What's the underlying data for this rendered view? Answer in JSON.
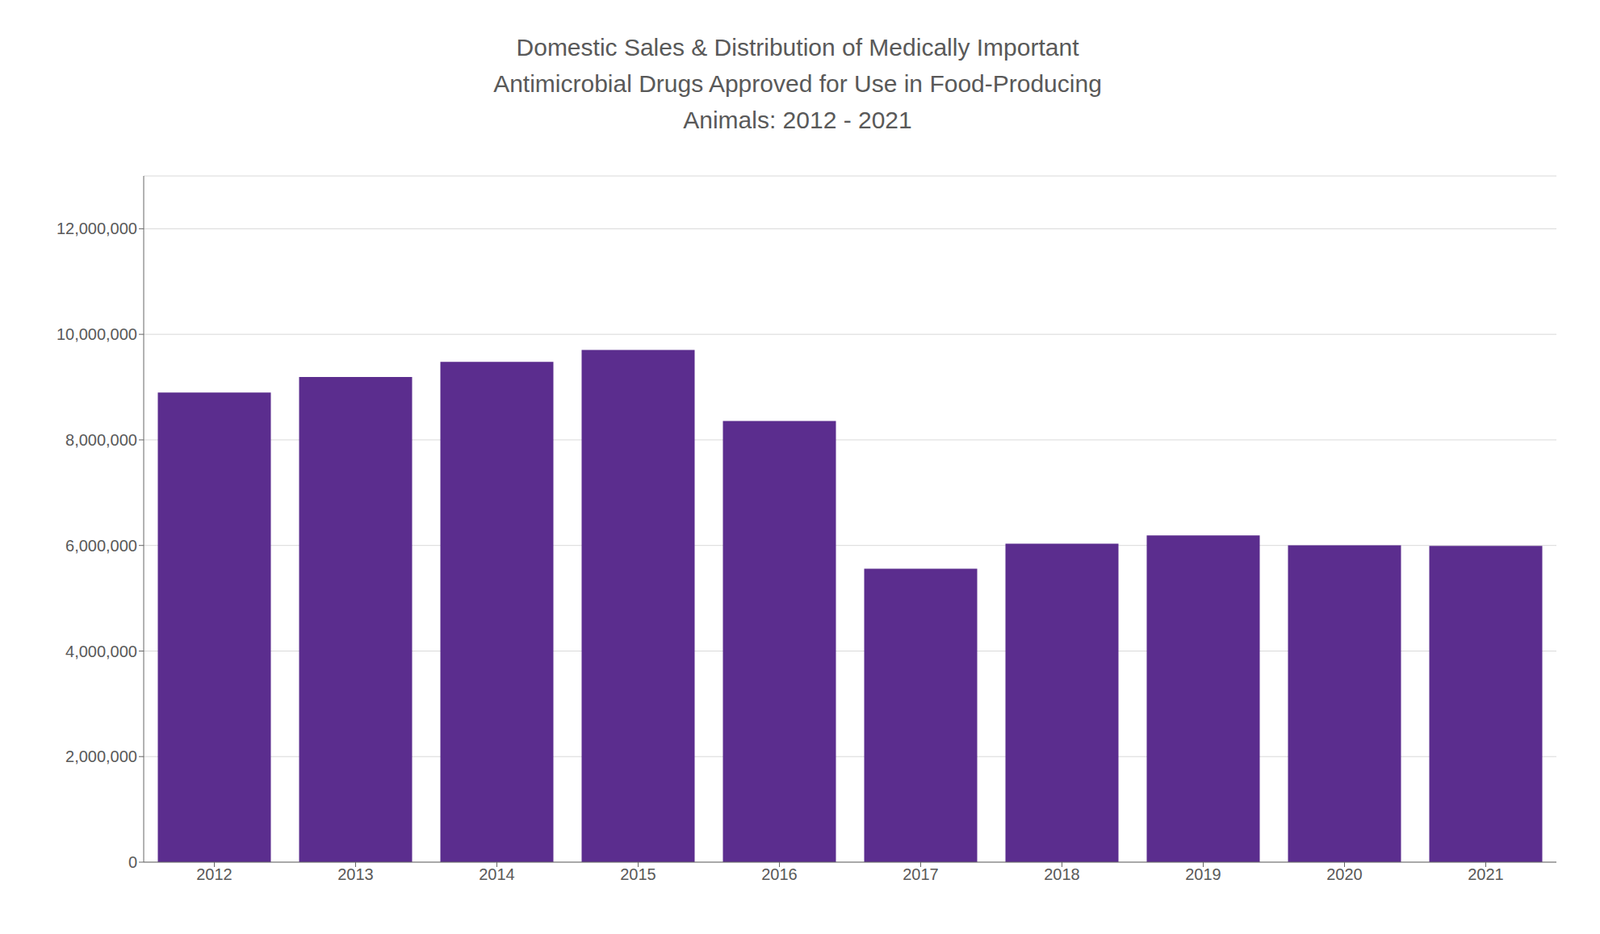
{
  "chart_data": {
    "type": "bar",
    "title": "Domestic Sales & Distribution of Medically Important\nAntimicrobial Drugs Approved for Use in Food-Producing\nAnimals: 2012 - 2021",
    "categories": [
      "2012",
      "2013",
      "2014",
      "2015",
      "2016",
      "2017",
      "2018",
      "2019",
      "2020",
      "2021"
    ],
    "values": [
      8897420,
      9193293,
      9479339,
      9702943,
      8356340,
      5559212,
      6032298,
      6189260,
      6002056,
      5989721
    ],
    "color": "#5b2d8e",
    "ylim": [
      0,
      13000000
    ],
    "yticks": [
      0,
      {
        "value": 2000000,
        "label": "2,000,000"
      },
      {
        "value": 4000000,
        "label": "4,000,000"
      },
      {
        "value": 6000000,
        "label": "6,000,000"
      },
      {
        "value": 8000000,
        "label": "8,000,000"
      },
      {
        "value": 10000000,
        "label": "10,000,000"
      },
      {
        "value": 12000000,
        "label": "12,000,000"
      }
    ],
    "grid": true
  }
}
